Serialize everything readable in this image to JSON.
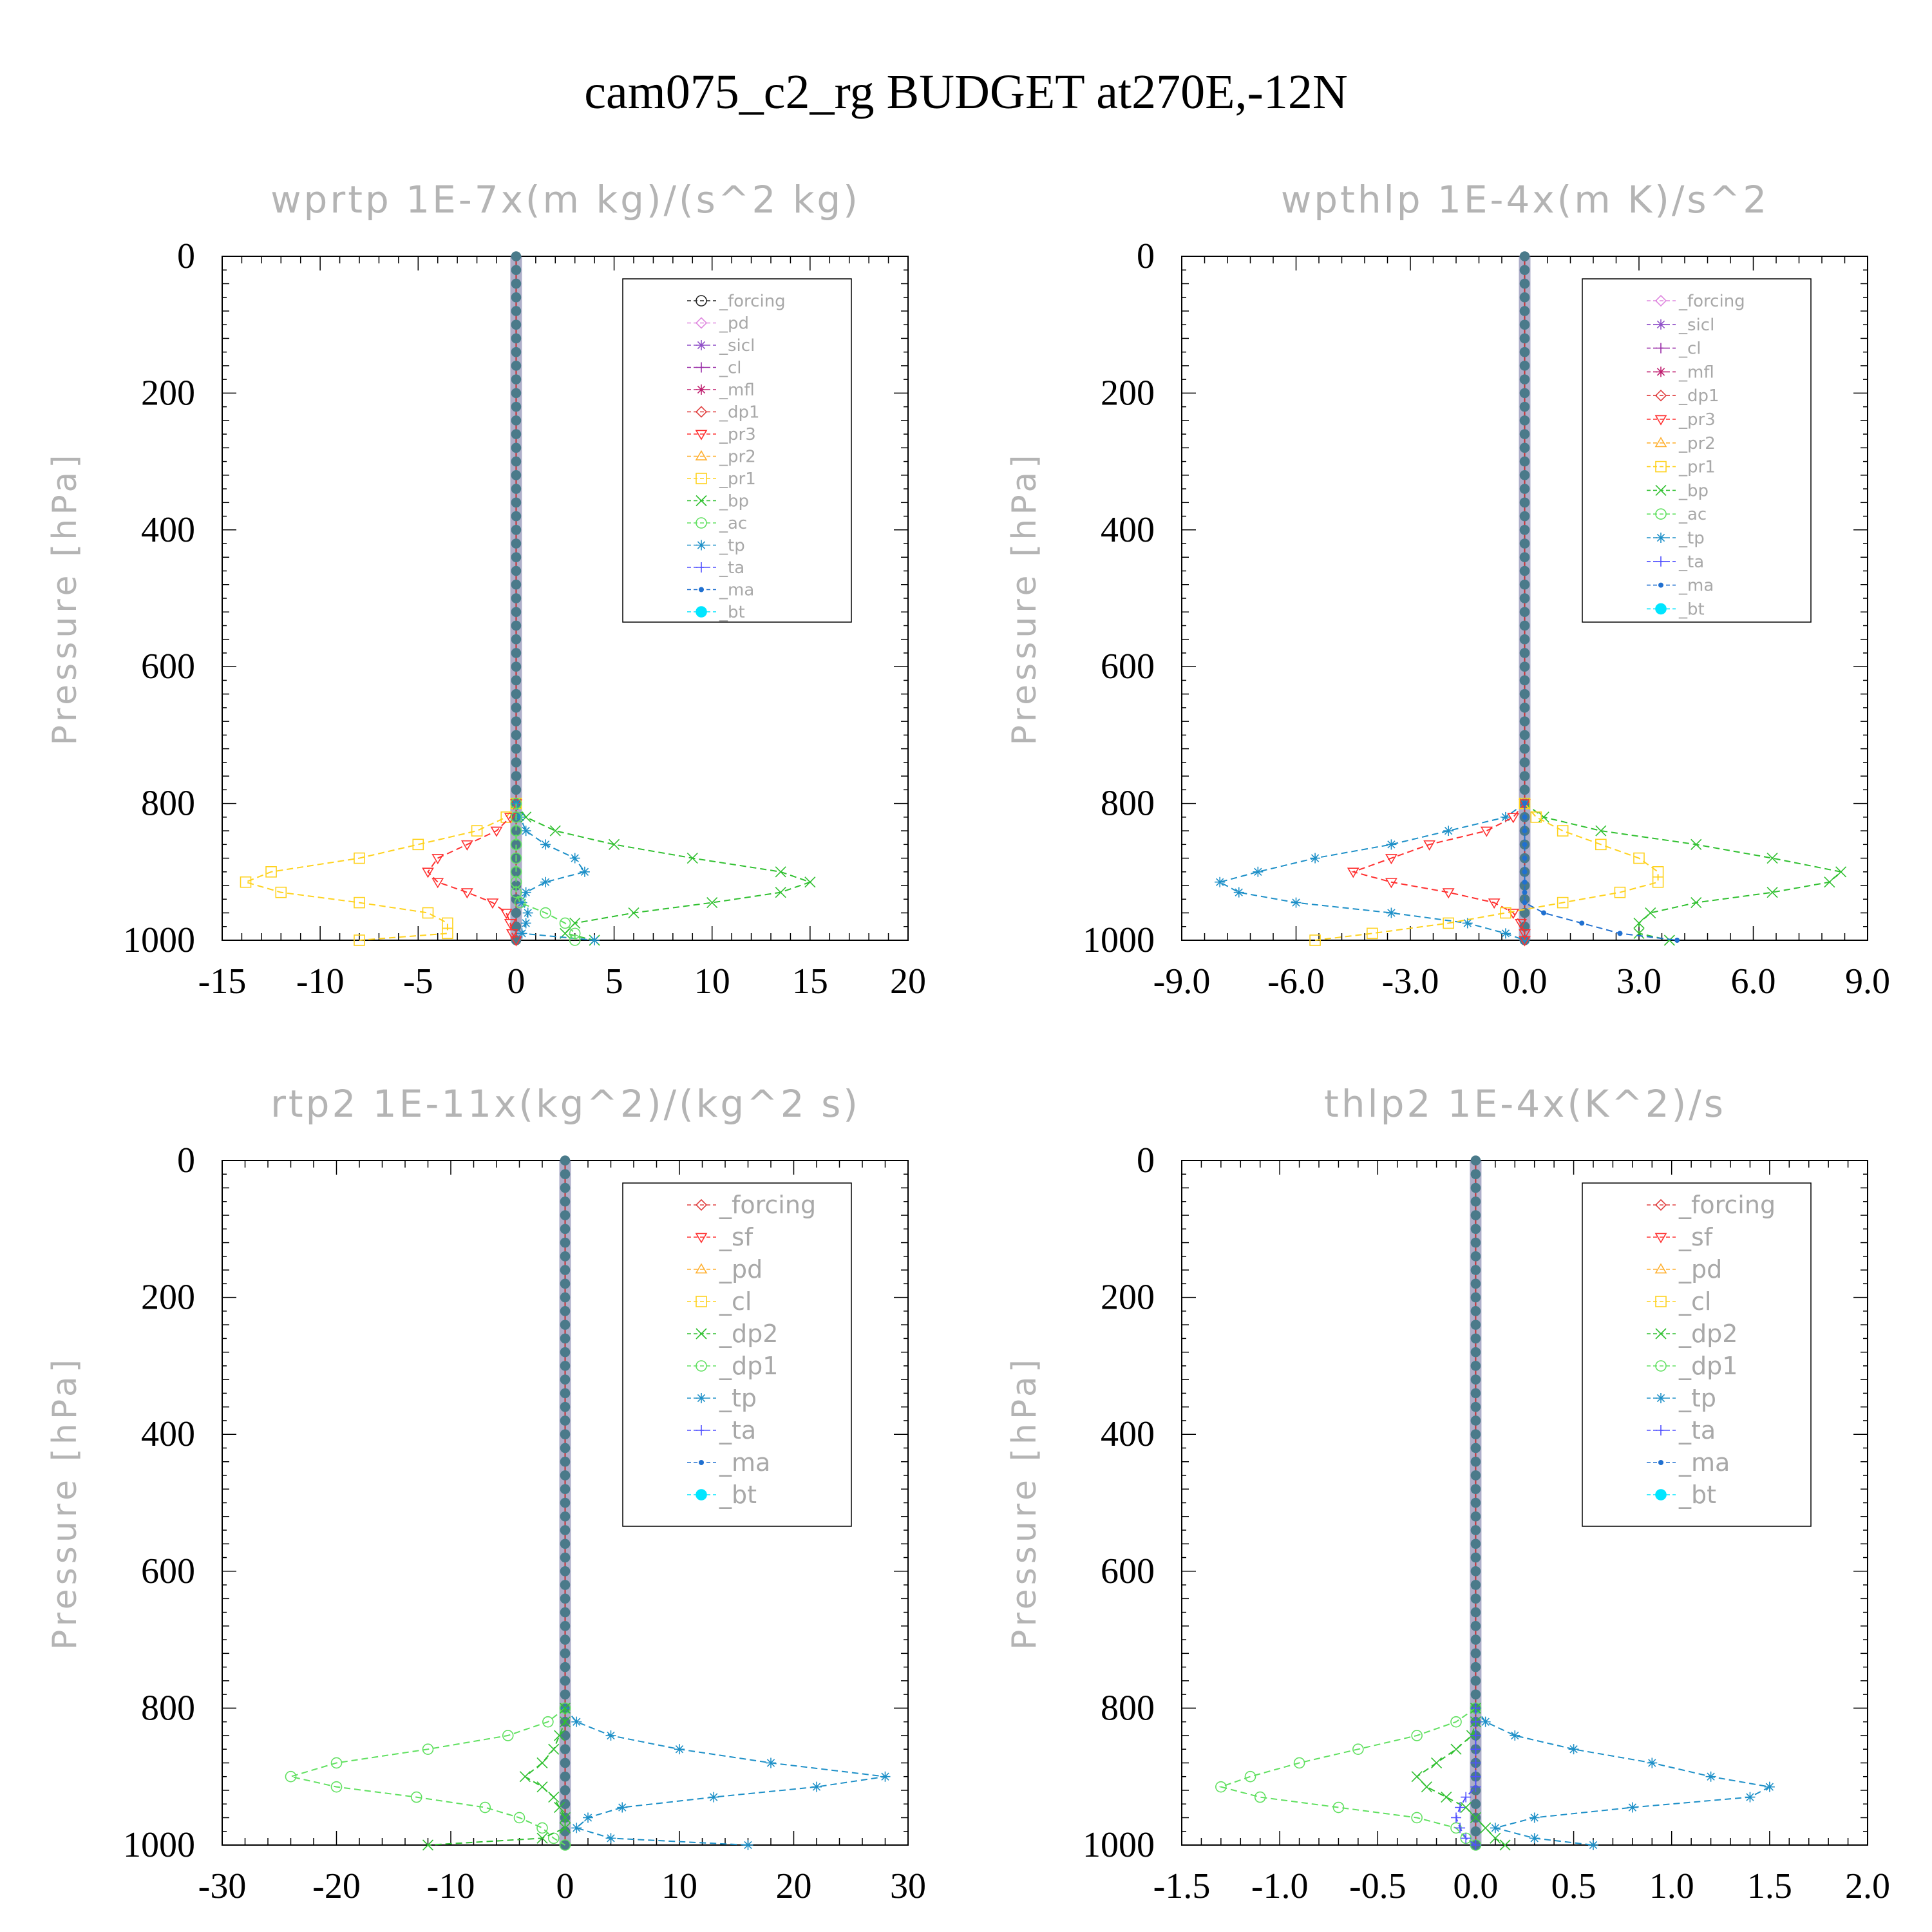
{
  "title": "cam075_c2_rg  BUDGET at270E,-12N",
  "colors": {
    "forcing_black": "#222222",
    "pd_pink": "#e08ae0",
    "sicl_purple": "#9050c8",
    "cl_purple": "#9a2fa8",
    "mfl_magenta": "#c02070",
    "dp1_red": "#e04040",
    "pr3_red": "#ff3030",
    "pr2_orange": "#ffb030",
    "pr1_yellow": "#ffd21e",
    "bp_green": "#30c030",
    "ac_green": "#60e060",
    "tp_blue": "#1e90c8",
    "ta_blue": "#5050ff",
    "ma_blue": "#2070d0",
    "bt_cyan": "#00e5ff"
  },
  "chart_data": [
    {
      "type": "line",
      "title": "wprtp   1E-7x(m kg)/(s^2 kg)",
      "ylabel": "Pressure [hPa]",
      "ylim": [
        1000,
        0
      ],
      "xlim": [
        -15,
        20
      ],
      "xticks": [
        "-15",
        "-10",
        "-5",
        "0",
        "5",
        "10",
        "15",
        "20"
      ],
      "yticks": [
        "0",
        "200",
        "400",
        "600",
        "800",
        "1000"
      ],
      "legend": [
        "_forcing",
        "_pd",
        "_sicl",
        "_cl",
        "_mfl",
        "_dp1",
        "_pr3",
        "_pr2",
        "_pr1",
        "_bp",
        "_ac",
        "_tp",
        "_ta",
        "_ma",
        "_bt"
      ],
      "legend_colors": [
        "#222222",
        "#e08ae0",
        "#9050c8",
        "#9a2fa8",
        "#c02070",
        "#e04040",
        "#ff3030",
        "#ffb030",
        "#ffd21e",
        "#30c030",
        "#60e060",
        "#1e90c8",
        "#5050ff",
        "#2070d0",
        "#00e5ff"
      ],
      "legend_markers": [
        "circle-dot",
        "diamond",
        "star",
        "circle-plus",
        "star",
        "diamond",
        "tri-down",
        "tri-up",
        "square",
        "x",
        "circle",
        "asterisk",
        "plus",
        "dot",
        "filled-circle"
      ],
      "levels": [
        800,
        820,
        840,
        860,
        880,
        900,
        915,
        930,
        945,
        960,
        975,
        990,
        1000
      ],
      "series": [
        {
          "name": "_bp",
          "color": "#30c030",
          "marker": "x",
          "values": [
            0,
            0.5,
            2,
            5,
            9,
            13.5,
            15,
            13.5,
            10,
            6,
            3,
            2.5,
            4
          ]
        },
        {
          "name": "_pr1",
          "color": "#ffd21e",
          "marker": "square",
          "values": [
            0,
            -0.5,
            -2,
            -5,
            -8,
            -12.5,
            -13.8,
            -12,
            -8,
            -4.5,
            -3.5,
            -3.5,
            -8
          ]
        },
        {
          "name": "_pr3",
          "color": "#ff3030",
          "marker": "tri-down",
          "values": [
            0,
            -0.3,
            -1,
            -2.5,
            -4,
            -4.5,
            -4,
            -2.5,
            -1.2,
            -0.5,
            -0.3,
            -0.2,
            0
          ]
        },
        {
          "name": "_tp",
          "color": "#1e90c8",
          "marker": "asterisk",
          "values": [
            0,
            0.2,
            0.5,
            1.5,
            3,
            3.5,
            1.5,
            0.5,
            0.3,
            0.6,
            0.5,
            0.3,
            4
          ]
        },
        {
          "name": "_ac",
          "color": "#60e060",
          "marker": "circle",
          "values": [
            0,
            0,
            0,
            0,
            0,
            0,
            0,
            0,
            0.2,
            1.5,
            2.5,
            3,
            3
          ]
        }
      ]
    },
    {
      "type": "line",
      "title": "wpthlp   1E-4x(m K)/s^2",
      "ylabel": "Pressure [hPa]",
      "ylim": [
        1000,
        0
      ],
      "xlim": [
        -9,
        9
      ],
      "xticks": [
        "-9.0",
        "-6.0",
        "-3.0",
        "0.0",
        "3.0",
        "6.0",
        "9.0"
      ],
      "yticks": [
        "0",
        "200",
        "400",
        "600",
        "800",
        "1000"
      ],
      "legend": [
        "_forcing",
        "_sicl",
        "_cl",
        "_mfl",
        "_dp1",
        "_pr3",
        "_pr2",
        "_pr1",
        "_bp",
        "_ac",
        "_tp",
        "_ta",
        "_ma",
        "_bt"
      ],
      "legend_colors": [
        "#e08ae0",
        "#9050c8",
        "#9a2fa8",
        "#c02070",
        "#e04040",
        "#ff3030",
        "#ffb030",
        "#ffd21e",
        "#30c030",
        "#60e060",
        "#1e90c8",
        "#5050ff",
        "#2070d0",
        "#00e5ff"
      ],
      "legend_markers": [
        "diamond",
        "star",
        "circle-plus",
        "star",
        "diamond",
        "tri-down",
        "tri-up",
        "square",
        "x",
        "circle",
        "asterisk",
        "plus",
        "dot",
        "filled-circle"
      ],
      "levels": [
        800,
        820,
        840,
        860,
        880,
        900,
        915,
        930,
        945,
        960,
        975,
        990,
        1000
      ],
      "series": [
        {
          "name": "_bp",
          "color": "#30c030",
          "marker": "x",
          "values": [
            0,
            0.5,
            2,
            4.5,
            6.5,
            8.3,
            8,
            6.5,
            4.5,
            3.3,
            3,
            3,
            3.8
          ]
        },
        {
          "name": "_tp",
          "color": "#1e90c8",
          "marker": "asterisk",
          "values": [
            0,
            -0.5,
            -2,
            -3.5,
            -5.5,
            -7,
            -8,
            -7.5,
            -6,
            -3.5,
            -1.5,
            -0.5,
            0
          ]
        },
        {
          "name": "_pr3",
          "color": "#ff3030",
          "marker": "tri-down",
          "values": [
            0,
            -0.3,
            -1,
            -2.5,
            -3.5,
            -4.5,
            -3.5,
            -2,
            -0.8,
            -0.3,
            -0.1,
            0,
            0
          ]
        },
        {
          "name": "_pr1",
          "color": "#ffd21e",
          "marker": "square",
          "values": [
            0,
            0.3,
            1,
            2,
            3,
            3.5,
            3.5,
            2.5,
            1,
            -0.5,
            -2,
            -4,
            -5.5
          ]
        },
        {
          "name": "_ma",
          "color": "#2070d0",
          "marker": "dot",
          "values": [
            0,
            0,
            0,
            0,
            0,
            0,
            0,
            0,
            0,
            0.5,
            1.5,
            2.5,
            4
          ]
        }
      ]
    },
    {
      "type": "line",
      "title": "rtp2   1E-11x(kg^2)/(kg^2 s)",
      "ylabel": "Pressure [hPa]",
      "ylim": [
        1000,
        0
      ],
      "xlim": [
        -30,
        30
      ],
      "xticks": [
        "-30",
        "-20",
        "-10",
        "0",
        "10",
        "20",
        "30"
      ],
      "yticks": [
        "0",
        "200",
        "400",
        "600",
        "800",
        "1000"
      ],
      "legend": [
        "_forcing",
        "_sf",
        "_pd",
        "_cl",
        "_dp2",
        "_dp1",
        "_tp",
        "_ta",
        "_ma",
        "_bt"
      ],
      "legend_colors": [
        "#e04040",
        "#ff3030",
        "#ffb030",
        "#ffd21e",
        "#30c030",
        "#60e060",
        "#1e90c8",
        "#5050ff",
        "#2070d0",
        "#00e5ff"
      ],
      "legend_markers": [
        "diamond",
        "tri-down",
        "tri-up",
        "square",
        "x",
        "circle",
        "asterisk",
        "plus",
        "dot",
        "filled-circle"
      ],
      "levels": [
        800,
        820,
        840,
        860,
        880,
        900,
        915,
        930,
        945,
        960,
        975,
        990,
        1000
      ],
      "series": [
        {
          "name": "_tp",
          "color": "#1e90c8",
          "marker": "asterisk",
          "values": [
            0,
            1,
            4,
            10,
            18,
            28,
            22,
            13,
            5,
            2,
            1,
            4,
            16
          ]
        },
        {
          "name": "_dp1",
          "color": "#60e060",
          "marker": "circle",
          "values": [
            0,
            -1.5,
            -5,
            -12,
            -20,
            -24,
            -20,
            -13,
            -7,
            -4,
            -2,
            -1,
            0
          ]
        },
        {
          "name": "_dp2",
          "color": "#30c030",
          "marker": "x",
          "values": [
            0,
            0,
            -0.5,
            -1,
            -2,
            -3.5,
            -2,
            -1,
            -0.5,
            0,
            0,
            -2,
            -12
          ]
        }
      ]
    },
    {
      "type": "line",
      "title": "thlp2   1E-4x(K^2)/s",
      "ylabel": "Pressure [hPa]",
      "ylim": [
        1000,
        0
      ],
      "xlim": [
        -1.5,
        2
      ],
      "xticks": [
        "-1.5",
        "-1.0",
        "-0.5",
        "0.0",
        "0.5",
        "1.0",
        "1.5",
        "2.0"
      ],
      "yticks": [
        "0",
        "200",
        "400",
        "600",
        "800",
        "1000"
      ],
      "legend": [
        "_forcing",
        "_sf",
        "_pd",
        "_cl",
        "_dp2",
        "_dp1",
        "_tp",
        "_ta",
        "_ma",
        "_bt"
      ],
      "legend_colors": [
        "#e04040",
        "#ff3030",
        "#ffb030",
        "#ffd21e",
        "#30c030",
        "#60e060",
        "#1e90c8",
        "#5050ff",
        "#2070d0",
        "#00e5ff"
      ],
      "legend_markers": [
        "diamond",
        "tri-down",
        "tri-up",
        "square",
        "x",
        "circle",
        "asterisk",
        "plus",
        "dot",
        "filled-circle"
      ],
      "levels": [
        800,
        820,
        840,
        860,
        880,
        900,
        915,
        930,
        945,
        960,
        975,
        990,
        1000
      ],
      "series": [
        {
          "name": "_tp",
          "color": "#1e90c8",
          "marker": "asterisk",
          "values": [
            0,
            0.05,
            0.2,
            0.5,
            0.9,
            1.2,
            1.5,
            1.4,
            0.8,
            0.3,
            0.1,
            0.3,
            0.6
          ]
        },
        {
          "name": "_dp1",
          "color": "#60e060",
          "marker": "circle",
          "values": [
            0,
            -0.1,
            -0.3,
            -0.6,
            -0.9,
            -1.15,
            -1.3,
            -1.1,
            -0.7,
            -0.3,
            -0.1,
            -0.05,
            0
          ]
        },
        {
          "name": "_dp2",
          "color": "#30c030",
          "marker": "x",
          "values": [
            0,
            0,
            -0.02,
            -0.1,
            -0.2,
            -0.3,
            -0.25,
            -0.15,
            -0.05,
            0,
            0.05,
            0.1,
            0.15
          ]
        },
        {
          "name": "_ta",
          "color": "#5050ff",
          "marker": "plus",
          "values": [
            0,
            0,
            0,
            0,
            0,
            0,
            0,
            -0.05,
            -0.08,
            -0.1,
            -0.08,
            -0.05,
            0
          ]
        }
      ]
    }
  ]
}
